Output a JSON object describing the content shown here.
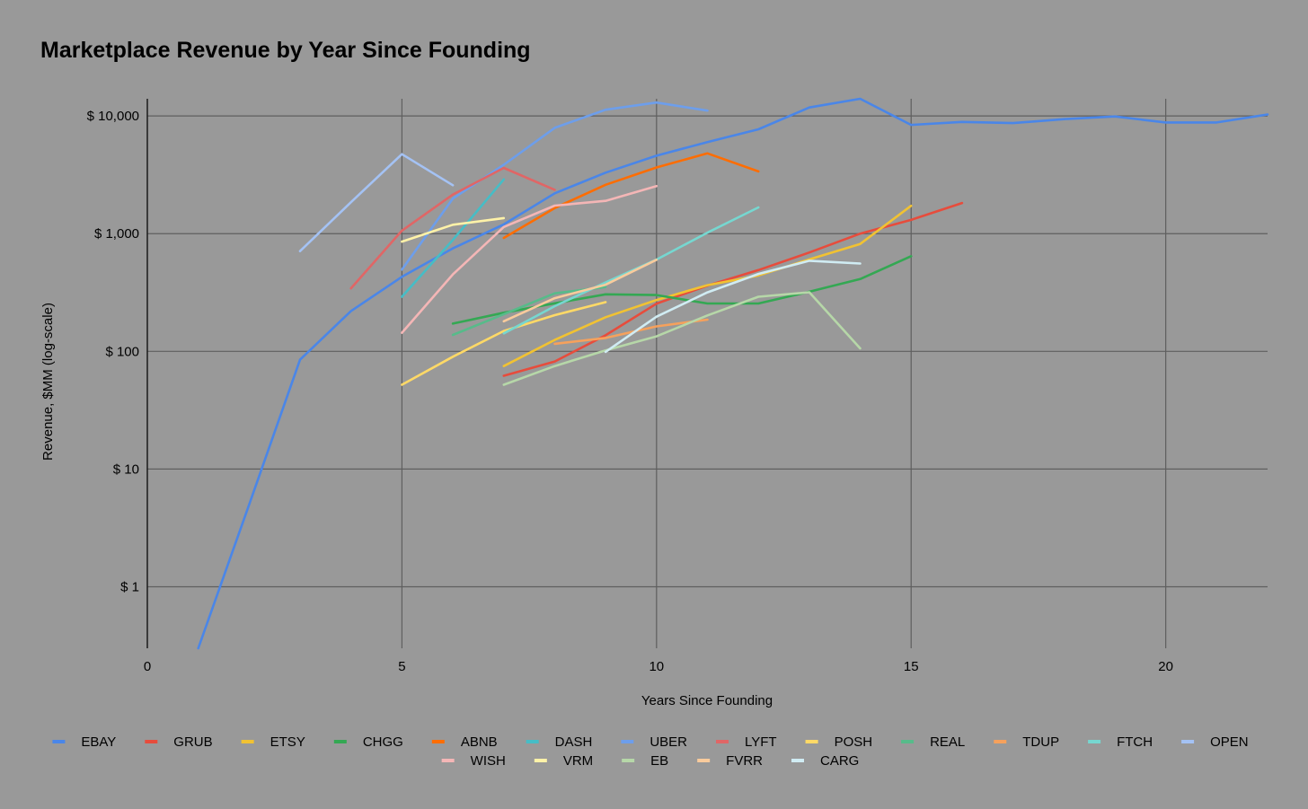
{
  "chart_data": {
    "type": "line",
    "title": "Marketplace Revenue by Year Since Founding",
    "xlabel": "Years Since Founding",
    "ylabel": "Revenue, $MM (log-scale)",
    "y_scale": "log",
    "xlim": [
      0,
      22
    ],
    "ylim": [
      0.3,
      14000
    ],
    "x_ticks": [
      0,
      5,
      10,
      15,
      20
    ],
    "y_ticks": [
      1,
      10,
      100,
      1000,
      10000
    ],
    "y_tick_labels": [
      "$ 1",
      "$ 10",
      "$ 100",
      "$ 1,000",
      "$ 10,000"
    ],
    "grid": true,
    "legend_position": "bottom",
    "series": [
      {
        "name": "EBAY",
        "color": "#4a86e8",
        "x": [
          1,
          2,
          3,
          4,
          5,
          6,
          7,
          8,
          9,
          10,
          11,
          12,
          13,
          14,
          15,
          16,
          17,
          18,
          19,
          20,
          21,
          22
        ],
        "y": [
          0.3,
          5,
          85,
          220,
          430,
          750,
          1200,
          2200,
          3300,
          4600,
          6000,
          7700,
          11800,
          14000,
          8400,
          8900,
          8700,
          9400,
          9900,
          8800,
          8800,
          10300
        ]
      },
      {
        "name": "GRUB",
        "color": "#e74c3c",
        "x": [
          7,
          8,
          9,
          10,
          11,
          12,
          13,
          14,
          15,
          16
        ],
        "y": [
          62,
          82,
          137,
          254,
          362,
          490,
          692,
          1000,
          1310,
          1820
        ]
      },
      {
        "name": "ETSY",
        "color": "#f1c232",
        "x": [
          7,
          8,
          9,
          10,
          11,
          12,
          13,
          14,
          15
        ],
        "y": [
          75,
          125,
          195,
          273,
          365,
          441,
          604,
          818,
          1725
        ]
      },
      {
        "name": "CHGG",
        "color": "#34a853",
        "x": [
          6,
          7,
          8,
          9,
          10,
          11,
          12,
          13,
          14,
          15
        ],
        "y": [
          172,
          213,
          256,
          305,
          301,
          255,
          255,
          321,
          411,
          644
        ]
      },
      {
        "name": "ABNB",
        "color": "#ff6d01",
        "x": [
          7,
          8,
          9,
          10,
          11,
          12
        ],
        "y": [
          919,
          1650,
          2600,
          3650,
          4810,
          3380
        ]
      },
      {
        "name": "DASH",
        "color": "#46bdc6",
        "x": [
          5,
          6,
          7
        ],
        "y": [
          291,
          885,
          2890
        ]
      },
      {
        "name": "UBER",
        "color": "#6d9eeb",
        "x": [
          5,
          6,
          7,
          8,
          9,
          10,
          11
        ],
        "y": [
          495,
          1990,
          3850,
          7930,
          11300,
          13000,
          11100
        ]
      },
      {
        "name": "LYFT",
        "color": "#e06666",
        "x": [
          4,
          5,
          6,
          7,
          8
        ],
        "y": [
          343,
          1060,
          2150,
          3620,
          2360
        ]
      },
      {
        "name": "POSH",
        "color": "#ffd966",
        "x": [
          5,
          6,
          7,
          8,
          9
        ],
        "y": [
          52,
          90,
          149,
          203,
          262
        ]
      },
      {
        "name": "REAL",
        "color": "#57bb8a",
        "x": [
          6,
          7,
          8,
          9
        ],
        "y": [
          138,
          207,
          311,
          352
        ]
      },
      {
        "name": "TDUP",
        "color": "#f6a15c",
        "x": [
          8,
          9,
          10,
          11
        ],
        "y": [
          116,
          130,
          163,
          186
        ]
      },
      {
        "name": "FTCH",
        "color": "#76d7d0",
        "x": [
          7,
          8,
          9,
          10,
          11,
          12
        ],
        "y": [
          142,
          242,
          385,
          602,
          1020,
          1670
        ]
      },
      {
        "name": "OPEN",
        "color": "#a4c2f4",
        "x": [
          3,
          4,
          5,
          6
        ],
        "y": [
          710,
          1850,
          4740,
          2580
        ]
      },
      {
        "name": "WISH",
        "color": "#f4b6b6",
        "x": [
          5,
          6,
          7,
          8,
          9,
          10
        ],
        "y": [
          144,
          451,
          1140,
          1730,
          1900,
          2540
        ]
      },
      {
        "name": "VRM",
        "color": "#fff2a8",
        "x": [
          5,
          6,
          7
        ],
        "y": [
          855,
          1190,
          1355
        ]
      },
      {
        "name": "EB",
        "color": "#b6d7a8",
        "x": [
          7,
          8,
          9,
          10,
          11,
          12,
          13,
          14
        ],
        "y": [
          52,
          75,
          102,
          134,
          202,
          291,
          318,
          106
        ]
      },
      {
        "name": "FVRR",
        "color": "#f9cb9c",
        "x": [
          7,
          8,
          9,
          10
        ],
        "y": [
          180,
          283,
          368,
          600
        ]
      },
      {
        "name": "CARG",
        "color": "#d0ecf3",
        "x": [
          9,
          10,
          11,
          12,
          13,
          14
        ],
        "y": [
          99,
          197,
          317,
          455,
          589,
          557
        ]
      }
    ]
  }
}
